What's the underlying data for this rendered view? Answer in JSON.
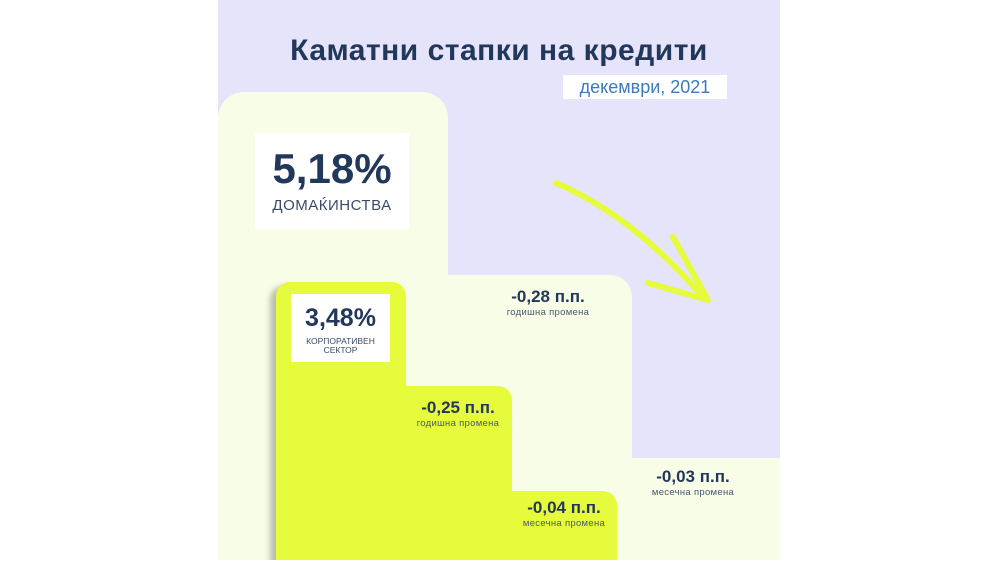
{
  "title": "Каматни стапки на кредити",
  "subtitle": "декември, 2021",
  "households": {
    "rate": "5,18%",
    "label": "ДОМАЌИНСТВА",
    "annual_change": "-0,28 п.п.",
    "annual_label": "годишна промена",
    "monthly_change": "-0,03 п.п.",
    "monthly_label": "месечна промена"
  },
  "corporate": {
    "rate": "3,48%",
    "label_line1": "КОРПОРАТИВЕН",
    "label_line2": "СЕКТОР",
    "annual_change": "-0,25 п.п.",
    "annual_label": "годишна промена",
    "monthly_change": "-0,04 п.п.",
    "monthly_label": "месечна промена"
  },
  "colors": {
    "background": "#e6e4fb",
    "pale": "#f7fde6",
    "lime": "#e6fb3c",
    "navy": "#22385a",
    "blue": "#3b7bbd"
  }
}
